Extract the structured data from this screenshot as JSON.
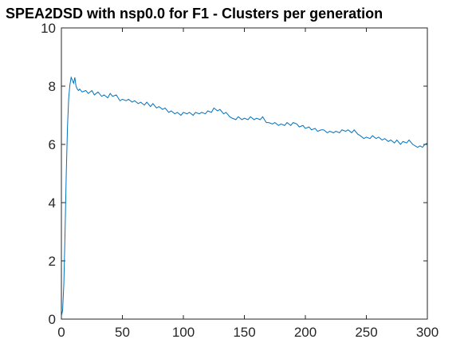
{
  "chart_data": {
    "type": "line",
    "title": "SPEA2DSD with nsp0.0 for F1 - Clusters per generation",
    "xlabel": "",
    "ylabel": "",
    "xlim": [
      0,
      300
    ],
    "ylim": [
      0,
      10
    ],
    "x_ticks": [
      0,
      50,
      100,
      150,
      200,
      250,
      300
    ],
    "y_ticks": [
      0,
      2,
      4,
      6,
      8,
      10
    ],
    "grid": false,
    "line_color": "#0072BD",
    "series": [
      {
        "x": [
          0,
          1,
          2,
          3,
          4,
          5,
          6,
          7,
          8,
          9,
          10,
          11,
          12,
          13,
          14,
          15,
          17,
          20,
          22,
          25,
          27,
          30,
          33,
          35,
          38,
          40,
          42,
          45,
          48,
          50,
          53,
          55,
          58,
          60,
          63,
          65,
          68,
          70,
          73,
          75,
          78,
          80,
          83,
          85,
          88,
          90,
          93,
          95,
          98,
          100,
          103,
          105,
          108,
          110,
          113,
          115,
          118,
          120,
          123,
          125,
          128,
          130,
          133,
          135,
          138,
          140,
          143,
          145,
          148,
          150,
          153,
          155,
          158,
          160,
          163,
          165,
          168,
          170,
          173,
          175,
          178,
          180,
          183,
          185,
          188,
          190,
          193,
          195,
          198,
          200,
          203,
          205,
          208,
          210,
          213,
          215,
          218,
          220,
          223,
          225,
          228,
          230,
          233,
          235,
          238,
          240,
          243,
          245,
          248,
          250,
          253,
          255,
          258,
          260,
          263,
          265,
          268,
          270,
          273,
          275,
          278,
          280,
          283,
          285,
          288,
          290,
          292,
          294,
          296,
          298,
          300
        ],
        "values": [
          0.1,
          0.3,
          1.2,
          3.0,
          5.0,
          6.6,
          7.6,
          8.05,
          8.3,
          8.2,
          8.1,
          8.3,
          8.0,
          7.9,
          7.85,
          7.9,
          7.8,
          7.85,
          7.75,
          7.85,
          7.7,
          7.8,
          7.65,
          7.7,
          7.6,
          7.75,
          7.65,
          7.7,
          7.5,
          7.55,
          7.5,
          7.55,
          7.45,
          7.5,
          7.4,
          7.45,
          7.35,
          7.45,
          7.3,
          7.4,
          7.25,
          7.3,
          7.2,
          7.25,
          7.1,
          7.15,
          7.05,
          7.1,
          7.0,
          7.1,
          7.05,
          7.1,
          7.0,
          7.1,
          7.05,
          7.1,
          7.05,
          7.15,
          7.1,
          7.25,
          7.15,
          7.2,
          7.05,
          7.1,
          6.95,
          6.9,
          6.85,
          6.95,
          6.85,
          6.9,
          6.85,
          6.95,
          6.85,
          6.9,
          6.85,
          6.95,
          6.75,
          6.75,
          6.7,
          6.75,
          6.65,
          6.7,
          6.65,
          6.75,
          6.65,
          6.75,
          6.7,
          6.6,
          6.65,
          6.55,
          6.6,
          6.5,
          6.55,
          6.45,
          6.5,
          6.5,
          6.4,
          6.45,
          6.4,
          6.45,
          6.4,
          6.5,
          6.45,
          6.5,
          6.4,
          6.5,
          6.35,
          6.3,
          6.2,
          6.25,
          6.2,
          6.3,
          6.2,
          6.25,
          6.15,
          6.2,
          6.1,
          6.15,
          6.05,
          6.15,
          6.0,
          6.1,
          6.05,
          6.15,
          6.0,
          5.95,
          5.9,
          5.95,
          5.9,
          6.0,
          6.05
        ]
      }
    ]
  }
}
